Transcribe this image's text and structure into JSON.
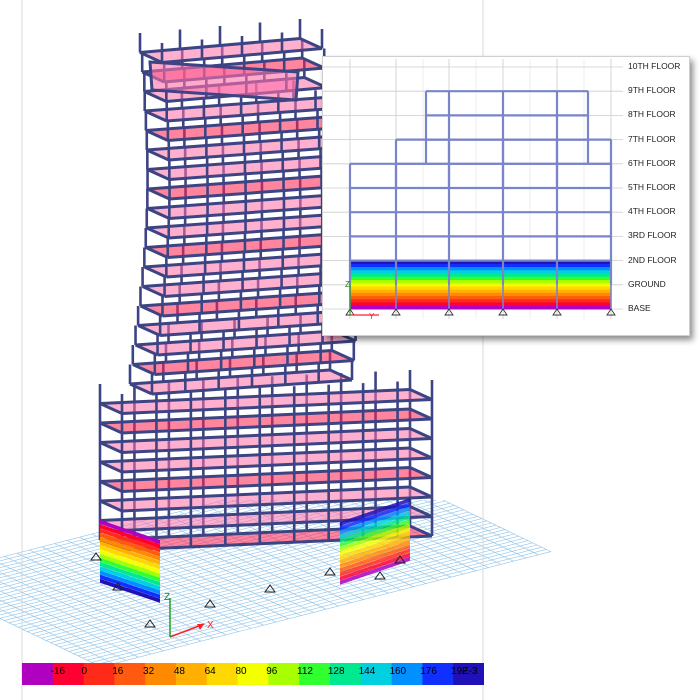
{
  "model_view": {
    "axes": {
      "x": "X",
      "z": "Z"
    }
  },
  "elevation": {
    "levels": [
      {
        "name": "10TH FLOOR"
      },
      {
        "name": "9TH FLOOR"
      },
      {
        "name": "8TH FLOOR"
      },
      {
        "name": "7TH FLOOR"
      },
      {
        "name": "6TH FLOOR"
      },
      {
        "name": "5TH FLOOR"
      },
      {
        "name": "4TH FLOOR"
      },
      {
        "name": "3RD FLOOR"
      },
      {
        "name": "2ND FLOOR"
      },
      {
        "name": "GROUND"
      },
      {
        "name": "BASE"
      }
    ],
    "axes": {
      "z": "Z",
      "y": "Y"
    }
  },
  "color_scale": {
    "ticks": [
      "-16",
      "0",
      "16",
      "32",
      "48",
      "64",
      "80",
      "96",
      "112",
      "128",
      "144",
      "160",
      "176",
      "192"
    ],
    "unit": "E-3",
    "colors": [
      "#b000c0",
      "#ff0030",
      "#ff2a1a",
      "#ff5a10",
      "#ff8a00",
      "#ffb000",
      "#ffd800",
      "#f4ff00",
      "#a8ff00",
      "#30ff30",
      "#00e890",
      "#00d0e0",
      "#0090ff",
      "#1030ff",
      "#2010b8"
    ]
  },
  "colors": {
    "frame": "#3d4484",
    "frame_light": "#7a84c8",
    "slab": "#ff6fa8",
    "slab_hot": "#ff2050",
    "grid": "#8fc4ea"
  }
}
